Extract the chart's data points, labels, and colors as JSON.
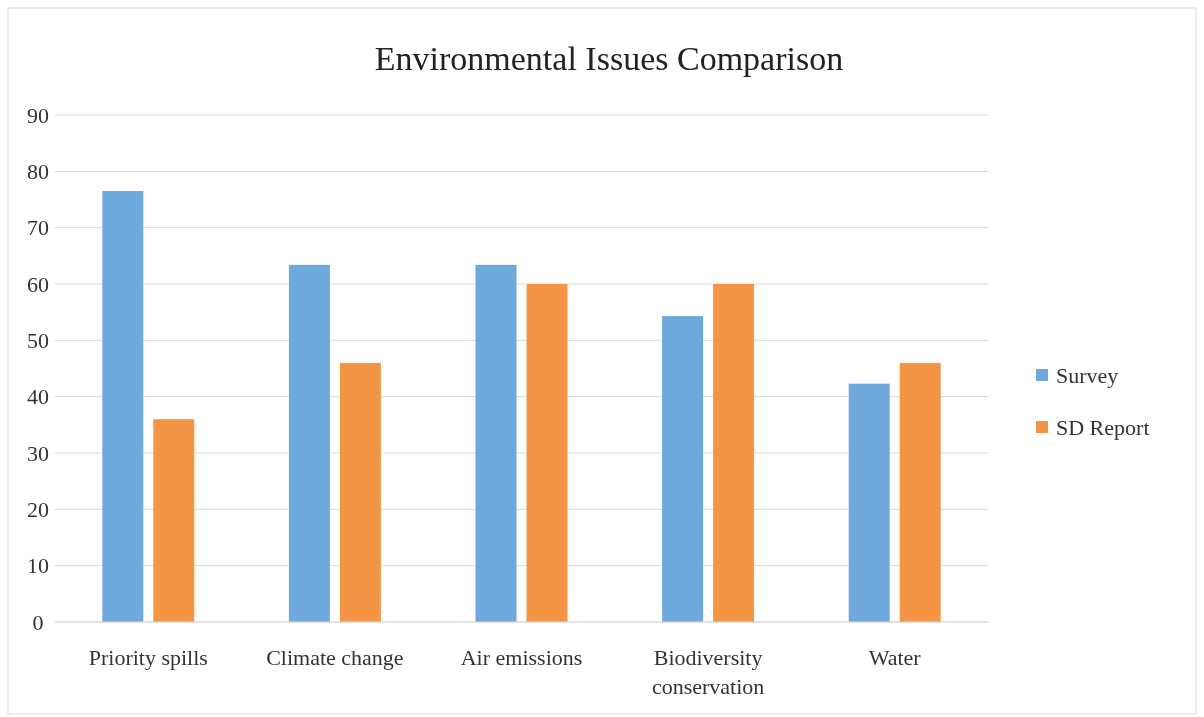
{
  "chart_data": {
    "type": "bar",
    "title": "Environmental Issues Comparison",
    "categories": [
      "Priority spills",
      "Climate change",
      "Air emissions",
      "Biodiversity conservation",
      "Water"
    ],
    "series": [
      {
        "name": "Survey",
        "color": "#6fa8dc",
        "values": [
          76.5,
          63.4,
          63.4,
          54.3,
          42.3
        ]
      },
      {
        "name": "SD Report",
        "color": "#f39545",
        "values": [
          36,
          46,
          60,
          60,
          46
        ]
      }
    ],
    "ylim": [
      0,
      90
    ],
    "yticks": [
      0,
      10,
      20,
      30,
      40,
      50,
      60,
      70,
      80,
      90
    ],
    "grid": "y",
    "legend": "right"
  }
}
